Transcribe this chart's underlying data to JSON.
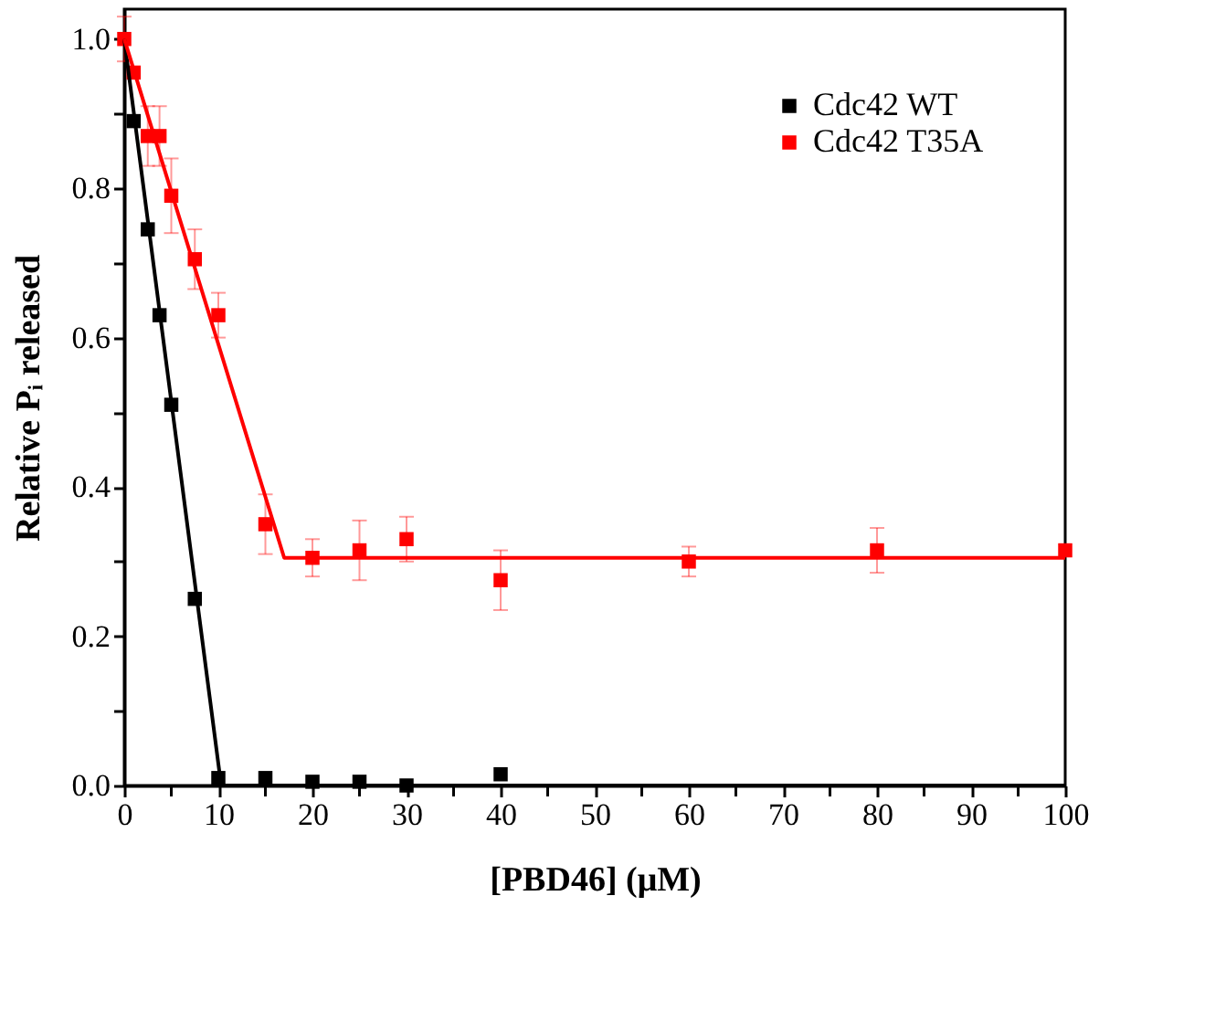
{
  "chart_data": {
    "type": "scatter",
    "xlabel": "[PBD46] (μM)",
    "ylabel": "Relative Pᵢ released",
    "series": [
      {
        "name": "Cdc42 WT",
        "color": "#000000",
        "x": [
          1,
          2.5,
          3.75,
          5,
          7.5,
          10,
          15,
          20,
          25,
          30,
          40
        ],
        "values": [
          0.89,
          0.745,
          0.63,
          0.51,
          0.25,
          0.01,
          0.01,
          0.005,
          0.005,
          0.0,
          0.015
        ]
      },
      {
        "name": "Cdc42 T35A",
        "color": "#ff0000",
        "x": [
          0,
          1,
          2.5,
          3.75,
          5,
          7.5,
          10,
          15,
          20,
          25,
          30,
          40,
          60,
          80,
          100
        ],
        "values": [
          1.0,
          0.955,
          0.87,
          0.87,
          0.79,
          0.705,
          0.63,
          0.35,
          0.305,
          0.315,
          0.33,
          0.275,
          0.3,
          0.315,
          0.315
        ],
        "errors": [
          0.03,
          null,
          0.04,
          0.04,
          0.05,
          0.04,
          0.03,
          0.04,
          0.025,
          0.04,
          0.03,
          0.04,
          0.02,
          0.03,
          null
        ]
      },
      {
        "color": "#000000",
        "type": "line",
        "marker": "none",
        "line_style": "solid",
        "x": [
          0,
          10.3,
          100
        ],
        "values": [
          1.0,
          0.0,
          0.0
        ]
      },
      {
        "color": "#ff0000",
        "type": "line",
        "marker": "none",
        "line_style": "solid",
        "x": [
          0,
          17,
          100
        ],
        "values": [
          1.0,
          0.305,
          0.305
        ]
      }
    ],
    "xlim": [
      0,
      100
    ],
    "ylim": [
      0,
      1.04
    ],
    "xticks": [
      0,
      {
        "value": 5,
        "label": null
      },
      10,
      {
        "value": 15,
        "label": null
      },
      20,
      {
        "value": 25,
        "label": null
      },
      30,
      {
        "value": 35,
        "label": null
      },
      40,
      {
        "value": 45,
        "label": null
      },
      50,
      {
        "value": 55,
        "label": null
      },
      60,
      {
        "value": 65,
        "label": null
      },
      70,
      {
        "value": 75,
        "label": null
      },
      80,
      {
        "value": 85,
        "label": null
      },
      90,
      {
        "value": 95,
        "label": null
      },
      100
    ],
    "yticks": [
      {
        "value": 0,
        "label": "0.0"
      },
      {
        "value": 0.1,
        "label": null
      },
      0.2,
      {
        "value": 0.3,
        "label": null
      },
      0.4,
      {
        "value": 0.5,
        "label": null
      },
      0.6,
      {
        "value": 0.7,
        "label": null
      },
      0.8,
      {
        "value": 0.9,
        "label": null
      },
      {
        "value": 1,
        "label": "1.0"
      }
    ],
    "marker": "square",
    "legend": "top right",
    "grid": false
  }
}
